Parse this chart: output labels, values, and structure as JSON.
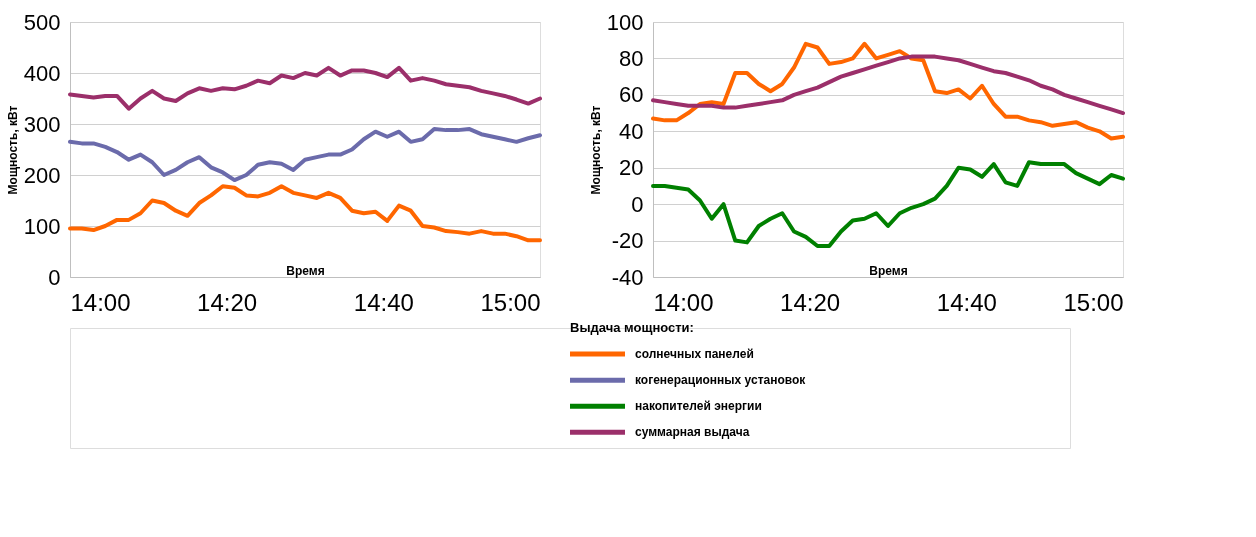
{
  "chart_data": [
    {
      "type": "line",
      "xlabel": "Время",
      "ylabel": "Мощность, кВт",
      "legend_title": "Выдача мощности:",
      "legend": "bottom",
      "grid": "y",
      "line_style": "solid",
      "xlim": [
        14,
        15
      ],
      "xticks": [
        {
          "value": 14,
          "label": "14:00"
        },
        {
          "value": 14.3333,
          "label": "14:20"
        },
        {
          "value": 14.6667,
          "label": "14:40"
        },
        {
          "value": 15,
          "label": "15:00"
        }
      ],
      "ylim": [
        0,
        500
      ],
      "yticks": [
        0,
        100,
        200,
        300,
        400,
        500
      ],
      "x": [
        14.0,
        14.025,
        14.05,
        14.075,
        14.1,
        14.125,
        14.15,
        14.175,
        14.2,
        14.225,
        14.25,
        14.275,
        14.3,
        14.325,
        14.35,
        14.375,
        14.4,
        14.425,
        14.45,
        14.475,
        14.5,
        14.525,
        14.55,
        14.575,
        14.6,
        14.625,
        14.65,
        14.675,
        14.7,
        14.725,
        14.75,
        14.775,
        14.8,
        14.825,
        14.85,
        14.875,
        14.9,
        14.925,
        14.95,
        14.975,
        15.0
      ],
      "series": [
        {
          "name": "солнечных панелей",
          "color": "#ff6600",
          "values": [
            95,
            95,
            92,
            100,
            112,
            112,
            125,
            150,
            145,
            130,
            120,
            145,
            160,
            178,
            175,
            160,
            158,
            165,
            178,
            165,
            160,
            155,
            165,
            155,
            130,
            125,
            128,
            110,
            140,
            130,
            100,
            97,
            90,
            88,
            85,
            90,
            85,
            85,
            80,
            72,
            72
          ]
        },
        {
          "name": "когенерационных  установок",
          "color": "#6b6bab",
          "values": [
            265,
            262,
            262,
            255,
            245,
            230,
            240,
            225,
            200,
            210,
            225,
            235,
            215,
            205,
            190,
            200,
            220,
            225,
            222,
            210,
            230,
            235,
            240,
            240,
            250,
            270,
            285,
            275,
            285,
            265,
            270,
            290,
            288,
            288,
            290,
            280,
            275,
            270,
            265,
            272,
            278
          ]
        },
        {
          "name": "суммарная выдача",
          "color": "#9b2f6a",
          "values": [
            358,
            355,
            352,
            355,
            355,
            330,
            350,
            365,
            350,
            345,
            360,
            370,
            365,
            370,
            368,
            375,
            385,
            380,
            395,
            390,
            400,
            395,
            410,
            395,
            405,
            405,
            400,
            392,
            410,
            385,
            390,
            385,
            378,
            375,
            372,
            365,
            360,
            355,
            348,
            340,
            350
          ]
        }
      ]
    },
    {
      "type": "line",
      "xlabel": "Время",
      "ylabel": "Мощность, кВт",
      "legend": "bottom",
      "grid": "y",
      "line_style": "solid",
      "xlim": [
        14,
        15
      ],
      "xticks": [
        {
          "value": 14,
          "label": "14:00"
        },
        {
          "value": 14.3333,
          "label": "14:20"
        },
        {
          "value": 14.6667,
          "label": "14:40"
        },
        {
          "value": 15,
          "label": "15:00"
        }
      ],
      "ylim": [
        -40,
        100
      ],
      "yticks": [
        -40,
        -20,
        0,
        20,
        40,
        60,
        80,
        100
      ],
      "x": [
        14.0,
        14.025,
        14.05,
        14.075,
        14.1,
        14.125,
        14.15,
        14.175,
        14.2,
        14.225,
        14.25,
        14.275,
        14.3,
        14.325,
        14.35,
        14.375,
        14.4,
        14.425,
        14.45,
        14.475,
        14.5,
        14.525,
        14.55,
        14.575,
        14.6,
        14.625,
        14.65,
        14.675,
        14.7,
        14.725,
        14.75,
        14.775,
        14.8,
        14.825,
        14.85,
        14.875,
        14.9,
        14.925,
        14.95,
        14.975,
        15.0
      ],
      "series": [
        {
          "name": "солнечных панелей",
          "color": "#ff6600",
          "values": [
            47,
            46,
            46,
            50,
            55,
            56,
            55,
            72,
            72,
            66,
            62,
            66,
            75,
            88,
            86,
            77,
            78,
            80,
            88,
            80,
            82,
            84,
            80,
            79,
            62,
            61,
            63,
            58,
            65,
            55,
            48,
            48,
            46,
            45,
            43,
            44,
            45,
            42,
            40,
            36,
            37
          ]
        },
        {
          "name": "накопителей энергии",
          "color": "#008000",
          "values": [
            10,
            10,
            9,
            8,
            2,
            -8,
            0,
            -20,
            -21,
            -12,
            -8,
            -5,
            -15,
            -18,
            -23,
            -23,
            -15,
            -9,
            -8,
            -5,
            -12,
            -5,
            -2,
            0,
            3,
            10,
            20,
            19,
            15,
            22,
            12,
            10,
            23,
            22,
            22,
            22,
            17,
            14,
            11,
            16,
            14
          ]
        },
        {
          "name": "суммарная выдача",
          "color": "#9b2f6a",
          "values": [
            57,
            56,
            55,
            54,
            54,
            54,
            53,
            53,
            54,
            55,
            56,
            57,
            60,
            62,
            64,
            67,
            70,
            72,
            74,
            76,
            78,
            80,
            81,
            81,
            81,
            80,
            79,
            77,
            75,
            73,
            72,
            70,
            68,
            65,
            63,
            60,
            58,
            56,
            54,
            52,
            50
          ]
        }
      ]
    }
  ]
}
